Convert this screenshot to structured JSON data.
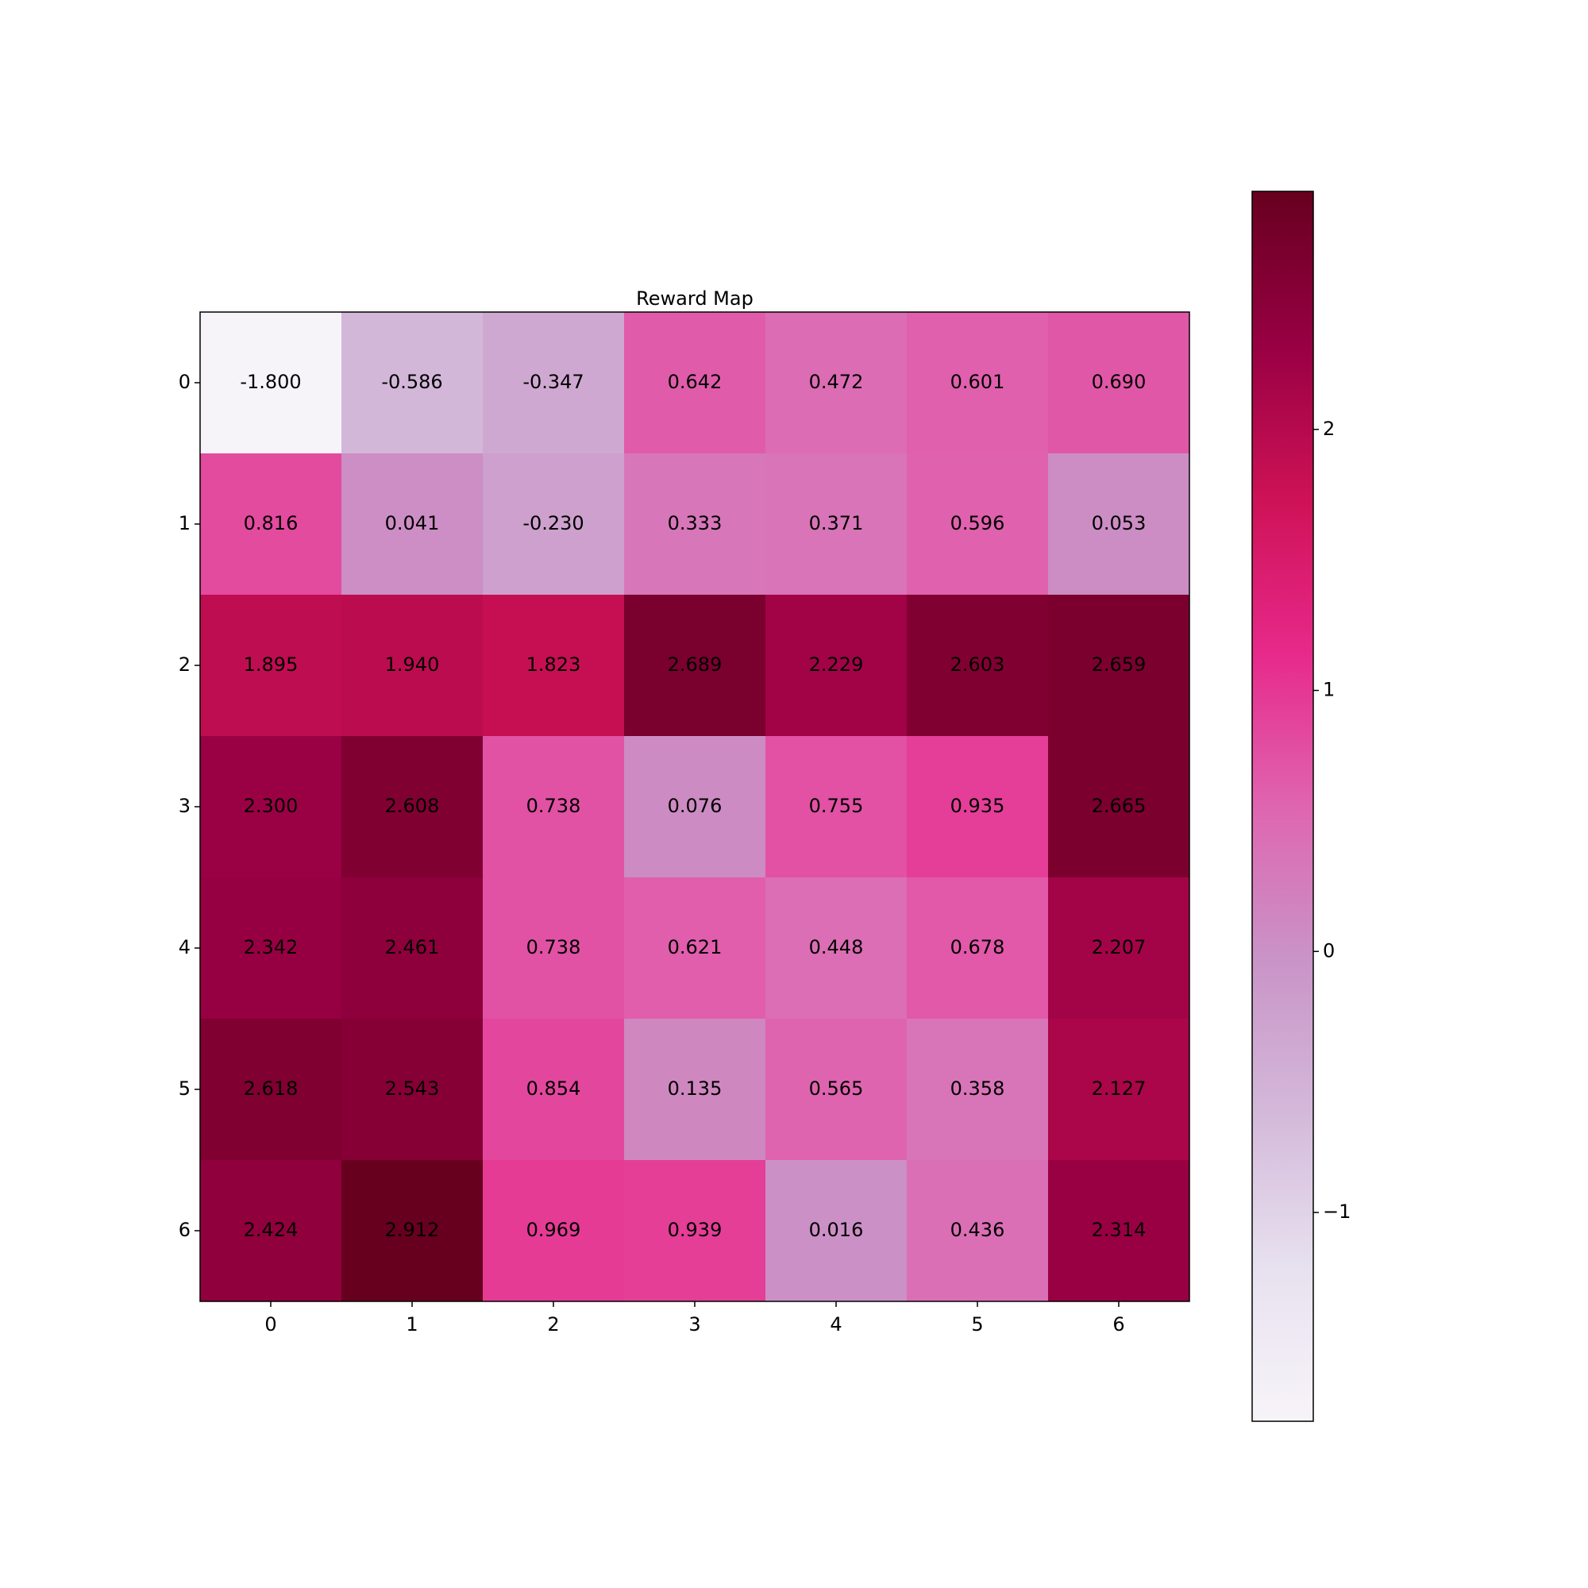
{
  "chart_data": {
    "type": "heatmap",
    "title": "Reward Map",
    "x_ticks": [
      "0",
      "1",
      "2",
      "3",
      "4",
      "5",
      "6"
    ],
    "y_ticks": [
      "0",
      "1",
      "2",
      "3",
      "4",
      "5",
      "6"
    ],
    "values": [
      [
        -1.8,
        -0.586,
        -0.347,
        0.642,
        0.472,
        0.601,
        0.69
      ],
      [
        0.816,
        0.041,
        -0.23,
        0.333,
        0.371,
        0.596,
        0.053
      ],
      [
        1.895,
        1.94,
        1.823,
        2.689,
        2.229,
        2.603,
        2.659
      ],
      [
        2.3,
        2.608,
        0.738,
        0.076,
        0.755,
        0.935,
        2.665
      ],
      [
        2.342,
        2.461,
        0.738,
        0.621,
        0.448,
        0.678,
        2.207
      ],
      [
        2.618,
        2.543,
        0.854,
        0.135,
        0.565,
        0.358,
        2.127
      ],
      [
        2.424,
        2.912,
        0.969,
        0.939,
        0.016,
        0.436,
        2.314
      ]
    ],
    "cell_labels": [
      [
        "-1.800",
        "-0.586",
        "-0.347",
        "0.642",
        "0.472",
        "0.601",
        "0.690"
      ],
      [
        "0.816",
        "0.041",
        "-0.230",
        "0.333",
        "0.371",
        "0.596",
        "0.053"
      ],
      [
        "1.895",
        "1.940",
        "1.823",
        "2.689",
        "2.229",
        "2.603",
        "2.659"
      ],
      [
        "2.300",
        "2.608",
        "0.738",
        "0.076",
        "0.755",
        "0.935",
        "2.665"
      ],
      [
        "2.342",
        "2.461",
        "0.738",
        "0.621",
        "0.448",
        "0.678",
        "2.207"
      ],
      [
        "2.618",
        "2.543",
        "0.854",
        "0.135",
        "0.565",
        "0.358",
        "2.127"
      ],
      [
        "2.424",
        "2.912",
        "0.969",
        "0.939",
        "0.016",
        "0.436",
        "2.314"
      ]
    ],
    "color_range": [
      -1.8,
      2.912
    ],
    "colormap": "PuRd",
    "colormap_stops": [
      "#f7f4f9",
      "#e7e1ef",
      "#d4b9da",
      "#c994c7",
      "#df65b0",
      "#e7298a",
      "#ce1256",
      "#980043",
      "#67001f"
    ],
    "colorbar": {
      "ticks": [
        2,
        1,
        0,
        -1
      ],
      "tick_labels": [
        "2",
        "1",
        "0",
        "−1"
      ]
    },
    "grid": false
  }
}
